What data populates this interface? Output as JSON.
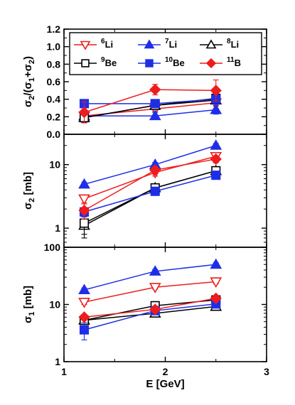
{
  "chart_data": [
    {
      "type": "line",
      "panel": "top",
      "ylabel_parts": [
        "σ",
        "2",
        "/(σ",
        "1",
        "+σ",
        "2",
        ")"
      ],
      "xlabel": "",
      "ylim": [
        0.0,
        1.2
      ],
      "yscale": "linear",
      "yticks": [
        "0.0",
        "0.2",
        "0.4",
        "0.6",
        "0.8",
        "1.0",
        "1.2"
      ],
      "x": [
        1.2,
        1.9,
        2.5
      ],
      "series": [
        {
          "name": "6Li",
          "values": [
            0.21,
            0.29,
            0.36
          ],
          "err": [
            0.03,
            0.03,
            0.04
          ]
        },
        {
          "name": "7Li",
          "values": [
            0.21,
            0.21,
            0.28
          ],
          "err": [
            0.03,
            0.04,
            0.05
          ]
        },
        {
          "name": "8Li",
          "values": [
            0.19,
            0.33,
            0.39
          ],
          "err": [
            0.05,
            0.03,
            0.04
          ]
        },
        {
          "name": "9Be",
          "values": [
            0.19,
            0.33,
            0.41
          ],
          "err": [
            0.05,
            0.03,
            0.05
          ]
        },
        {
          "name": "10Be",
          "values": [
            0.35,
            0.35,
            0.4
          ],
          "err": [
            0.04,
            0.04,
            0.05
          ]
        },
        {
          "name": "11B",
          "values": [
            0.25,
            0.51,
            0.5
          ],
          "err": [
            0.12,
            0.06,
            0.12
          ]
        }
      ],
      "legend": {
        "placement": "top",
        "entries": [
          {
            "mass": "6",
            "element": "Li"
          },
          {
            "mass": "7",
            "element": "Li"
          },
          {
            "mass": "8",
            "element": "Li"
          },
          {
            "mass": "9",
            "element": "Be"
          },
          {
            "mass": "10",
            "element": "Be"
          },
          {
            "mass": "11",
            "element": "B"
          }
        ]
      }
    },
    {
      "type": "line",
      "panel": "middle",
      "ylabel_parts": [
        "σ",
        "2",
        " [mb]"
      ],
      "xlabel": "",
      "ylim": [
        0.5,
        30
      ],
      "yscale": "log",
      "yticks": [
        "1",
        "10"
      ],
      "x": [
        1.2,
        1.9,
        2.5
      ],
      "series": [
        {
          "name": "6Li",
          "values": [
            2.9,
            7.5,
            13.5
          ],
          "err": [
            0.4,
            0.9,
            1.5
          ]
        },
        {
          "name": "7Li",
          "values": [
            4.9,
            10.0,
            20.0
          ],
          "err": [
            0.4,
            0.8,
            1.5
          ]
        },
        {
          "name": "8Li",
          "values": [
            1.1,
            4.3,
            8.0
          ],
          "err": [
            0.4,
            0.6,
            1.0
          ]
        },
        {
          "name": "9Be",
          "values": [
            1.2,
            4.3,
            8.0
          ],
          "err": [
            0.4,
            0.6,
            1.0
          ]
        },
        {
          "name": "10Be",
          "values": [
            1.8,
            3.8,
            6.8
          ],
          "err": [
            0.3,
            0.5,
            0.8
          ]
        },
        {
          "name": "11B",
          "values": [
            1.9,
            8.2,
            12.2
          ],
          "err": [
            0.5,
            1.0,
            1.5
          ]
        }
      ]
    },
    {
      "type": "line",
      "panel": "bottom",
      "ylabel_parts": [
        "σ",
        "1",
        " [mb]"
      ],
      "xlabel": "E [GeV]",
      "ylim": [
        1,
        100
      ],
      "yscale": "log",
      "yticks": [
        "1",
        "10",
        "100"
      ],
      "xlim": [
        1,
        3
      ],
      "xticks": [
        "1",
        "2",
        "3"
      ],
      "x": [
        1.2,
        1.9,
        2.5
      ],
      "series": [
        {
          "name": "6Li",
          "values": [
            11.0,
            20.0,
            25.0
          ],
          "err": [
            1.0,
            1.5,
            2.0
          ]
        },
        {
          "name": "7Li",
          "values": [
            18.0,
            38.0,
            50.0
          ],
          "err": [
            1.5,
            3.0,
            4.0
          ]
        },
        {
          "name": "8Li",
          "values": [
            5.3,
            7.0,
            9.2
          ],
          "err": [
            0.5,
            0.6,
            0.8
          ]
        },
        {
          "name": "9Be",
          "values": [
            5.3,
            9.5,
            12.0
          ],
          "err": [
            0.5,
            0.8,
            1.0
          ]
        },
        {
          "name": "10Be",
          "values": [
            3.6,
            7.8,
            10.2
          ],
          "err": [
            1.2,
            0.8,
            1.0
          ]
        },
        {
          "name": "11B",
          "values": [
            6.0,
            8.2,
            12.8
          ],
          "err": [
            0.6,
            0.8,
            1.2
          ]
        }
      ]
    }
  ],
  "styles": {
    "6Li": {
      "color": "#ee1c1c",
      "marker": "triangle-down-open"
    },
    "7Li": {
      "color": "#1f2ee6",
      "marker": "triangle-up-filled"
    },
    "8Li": {
      "color": "#000000",
      "marker": "triangle-up-open"
    },
    "9Be": {
      "color": "#000000",
      "marker": "square-open"
    },
    "10Be": {
      "color": "#1f2ee6",
      "marker": "square-filled"
    },
    "11B": {
      "color": "#ee1c1c",
      "marker": "diamond-filled"
    }
  }
}
